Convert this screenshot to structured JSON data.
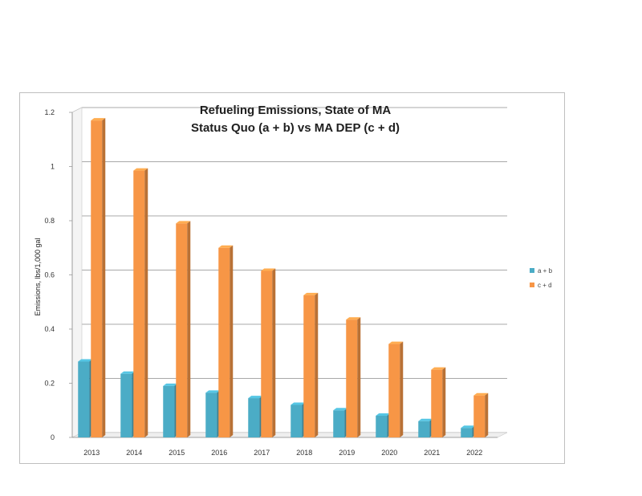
{
  "chart_data": {
    "type": "bar",
    "title_lines": [
      "Refueling Emissions, State of MA",
      "Status Quo (a + b)  vs MA DEP (c + d)"
    ],
    "xlabel": "",
    "ylabel": "Emissions, lbs/1,000 gal",
    "categories": [
      "2013",
      "2014",
      "2015",
      "2016",
      "2017",
      "2018",
      "2019",
      "2020",
      "2021",
      "2022"
    ],
    "series": [
      {
        "name": "a + b",
        "color": "#4bacc6",
        "values": [
          0.28,
          0.235,
          0.19,
          0.165,
          0.145,
          0.12,
          0.1,
          0.08,
          0.06,
          0.035
        ]
      },
      {
        "name": "c + d",
        "color": "#f79646",
        "values": [
          1.17,
          0.985,
          0.79,
          0.7,
          0.615,
          0.525,
          0.435,
          0.345,
          0.25,
          0.155
        ]
      }
    ],
    "ylim": [
      0,
      1.2
    ],
    "yticks": [
      "0",
      "0.2",
      "0.4",
      "0.6",
      "0.8",
      "1",
      "1.2"
    ],
    "grid": true,
    "legend_position": "right",
    "style": "3d-column"
  }
}
